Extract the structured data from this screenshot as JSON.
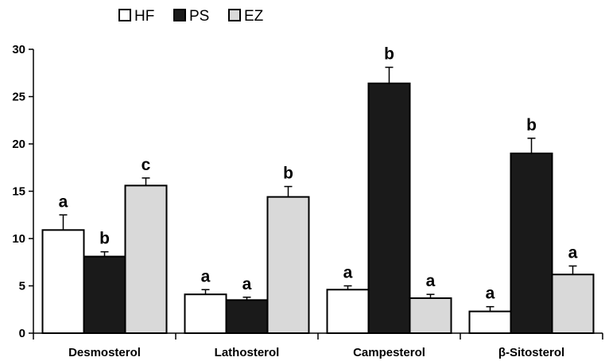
{
  "chart_data": {
    "type": "bar",
    "categories": [
      "Desmosterol",
      "Lathosterol",
      "Campesterol",
      "β-Sitosterol"
    ],
    "series": [
      {
        "name": "HF",
        "color": "#ffffff",
        "values": [
          10.9,
          4.1,
          4.6,
          2.3
        ],
        "errors": [
          1.6,
          0.5,
          0.4,
          0.5
        ],
        "labels": [
          "a",
          "a",
          "a",
          "a"
        ]
      },
      {
        "name": "PS",
        "color": "#1a1a1a",
        "values": [
          8.1,
          3.5,
          26.4,
          19.0
        ],
        "errors": [
          0.5,
          0.3,
          1.7,
          1.6
        ],
        "labels": [
          "b",
          "a",
          "b",
          "b"
        ]
      },
      {
        "name": "EZ",
        "color": "#d9d9d9",
        "values": [
          15.6,
          14.4,
          3.7,
          6.2
        ],
        "errors": [
          0.8,
          1.1,
          0.4,
          0.9
        ],
        "labels": [
          "c",
          "b",
          "a",
          "a"
        ]
      }
    ],
    "ylim": [
      0,
      30
    ],
    "yticks": [
      0,
      5,
      10,
      15,
      20,
      25,
      30
    ],
    "title": "",
    "xlabel": "",
    "ylabel": "",
    "grid": false,
    "legend_position": "top-left"
  }
}
